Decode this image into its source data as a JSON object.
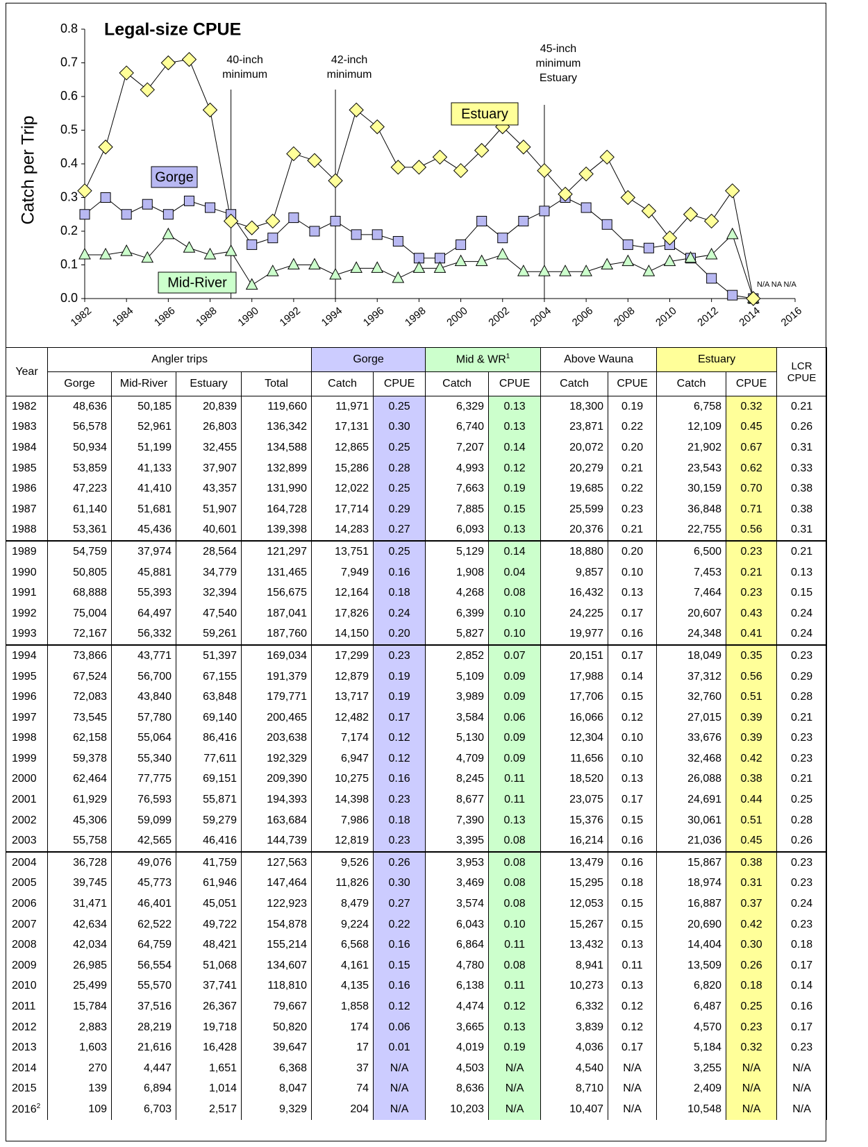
{
  "chart_data": {
    "type": "line",
    "title": "Legal-size CPUE",
    "y_label": "Catch per Trip",
    "x": [
      1982,
      1983,
      1984,
      1985,
      1986,
      1987,
      1988,
      1989,
      1990,
      1991,
      1992,
      1993,
      1994,
      1995,
      1996,
      1997,
      1998,
      1999,
      2000,
      2001,
      2002,
      2003,
      2004,
      2005,
      2006,
      2007,
      2008,
      2009,
      2010,
      2011,
      2012,
      2013,
      2014
    ],
    "xlim": [
      1982,
      2016
    ],
    "xticks": [
      1982,
      1984,
      1986,
      1988,
      1990,
      1992,
      1994,
      1996,
      1998,
      2000,
      2002,
      2004,
      2006,
      2008,
      2010,
      2012,
      2014,
      2016
    ],
    "ylim": [
      0,
      0.8
    ],
    "yticks": [
      {
        "value": 0,
        "label": "0.0"
      },
      0.1,
      0.2,
      0.3,
      0.4,
      0.5,
      0.6,
      0.7,
      0.8
    ],
    "series": [
      {
        "name": "Gorge",
        "color": "#b8b8f2",
        "marker": "square",
        "values": [
          0.25,
          0.3,
          0.25,
          0.28,
          0.25,
          0.29,
          0.27,
          0.25,
          0.16,
          0.18,
          0.24,
          0.2,
          0.23,
          0.19,
          0.19,
          0.17,
          0.12,
          0.12,
          0.16,
          0.23,
          0.18,
          0.23,
          0.26,
          0.3,
          0.27,
          0.22,
          0.16,
          0.15,
          0.16,
          0.12,
          0.06,
          0.01,
          0
        ]
      },
      {
        "name": "Mid-River",
        "color": "#ccffcc",
        "marker": "triangle",
        "values": [
          0.13,
          0.13,
          0.14,
          0.12,
          0.19,
          0.15,
          0.13,
          0.14,
          0.04,
          0.08,
          0.1,
          0.1,
          0.07,
          0.09,
          0.09,
          0.06,
          0.09,
          0.09,
          0.11,
          0.11,
          0.13,
          0.08,
          0.08,
          0.08,
          0.08,
          0.1,
          0.11,
          0.08,
          0.11,
          0.12,
          0.13,
          0.19,
          0
        ]
      },
      {
        "name": "Estuary",
        "color": "#ffff99",
        "marker": "diamond",
        "values": [
          0.32,
          0.45,
          0.67,
          0.62,
          0.7,
          0.71,
          0.56,
          0.23,
          0.21,
          0.23,
          0.43,
          0.41,
          0.35,
          0.56,
          0.51,
          0.39,
          0.39,
          0.42,
          0.38,
          0.44,
          0.51,
          0.45,
          0.38,
          0.31,
          0.37,
          0.42,
          0.3,
          0.26,
          0.18,
          0.25,
          0.23,
          0.32,
          0
        ]
      }
    ],
    "annotations": [
      {
        "x": 1989,
        "lines": [
          "40-inch",
          "minimum"
        ]
      },
      {
        "x": 1994,
        "lines": [
          "42-inch",
          "minimum"
        ]
      },
      {
        "x": 2004,
        "lines": [
          "45-inch",
          "minimum",
          "Estuary"
        ]
      }
    ],
    "na_note": "N/A NA N/A"
  },
  "table": {
    "columns_top": [
      "Year",
      "Angler trips",
      "Gorge",
      {
        "text": "Mid & WR",
        "note": "1"
      },
      "Above Wauna",
      "Estuary",
      "LCR CPUE"
    ],
    "columns": [
      "Gorge",
      "Mid-River",
      "Estuary",
      "Total",
      "Catch",
      "CPUE",
      "Catch",
      "CPUE",
      "Catch",
      "CPUE",
      "Catch",
      "CPUE"
    ],
    "groups": [
      [
        [
          "1982",
          "48,636",
          "50,185",
          "20,839",
          "119,660",
          "11,971",
          "0.25",
          "6,329",
          "0.13",
          "18,300",
          "0.19",
          "6,758",
          "0.32",
          "0.21"
        ],
        [
          "1983",
          "56,578",
          "52,961",
          "26,803",
          "136,342",
          "17,131",
          "0.30",
          "6,740",
          "0.13",
          "23,871",
          "0.22",
          "12,109",
          "0.45",
          "0.26"
        ],
        [
          "1984",
          "50,934",
          "51,199",
          "32,455",
          "134,588",
          "12,865",
          "0.25",
          "7,207",
          "0.14",
          "20,072",
          "0.20",
          "21,902",
          "0.67",
          "0.31"
        ],
        [
          "1985",
          "53,859",
          "41,133",
          "37,907",
          "132,899",
          "15,286",
          "0.28",
          "4,993",
          "0.12",
          "20,279",
          "0.21",
          "23,543",
          "0.62",
          "0.33"
        ],
        [
          "1986",
          "47,223",
          "41,410",
          "43,357",
          "131,990",
          "12,022",
          "0.25",
          "7,663",
          "0.19",
          "19,685",
          "0.22",
          "30,159",
          "0.70",
          "0.38"
        ],
        [
          "1987",
          "61,140",
          "51,681",
          "51,907",
          "164,728",
          "17,714",
          "0.29",
          "7,885",
          "0.15",
          "25,599",
          "0.23",
          "36,848",
          "0.71",
          "0.38"
        ],
        [
          "1988",
          "53,361",
          "45,436",
          "40,601",
          "139,398",
          "14,283",
          "0.27",
          "6,093",
          "0.13",
          "20,376",
          "0.21",
          "22,755",
          "0.56",
          "0.31"
        ]
      ],
      [
        [
          "1989",
          "54,759",
          "37,974",
          "28,564",
          "121,297",
          "13,751",
          "0.25",
          "5,129",
          "0.14",
          "18,880",
          "0.20",
          "6,500",
          "0.23",
          "0.21"
        ],
        [
          "1990",
          "50,805",
          "45,881",
          "34,779",
          "131,465",
          "7,949",
          "0.16",
          "1,908",
          "0.04",
          "9,857",
          "0.10",
          "7,453",
          "0.21",
          "0.13"
        ],
        [
          "1991",
          "68,888",
          "55,393",
          "32,394",
          "156,675",
          "12,164",
          "0.18",
          "4,268",
          "0.08",
          "16,432",
          "0.13",
          "7,464",
          "0.23",
          "0.15"
        ],
        [
          "1992",
          "75,004",
          "64,497",
          "47,540",
          "187,041",
          "17,826",
          "0.24",
          "6,399",
          "0.10",
          "24,225",
          "0.17",
          "20,607",
          "0.43",
          "0.24"
        ],
        [
          "1993",
          "72,167",
          "56,332",
          "59,261",
          "187,760",
          "14,150",
          "0.20",
          "5,827",
          "0.10",
          "19,977",
          "0.16",
          "24,348",
          "0.41",
          "0.24"
        ]
      ],
      [
        [
          "1994",
          "73,866",
          "43,771",
          "51,397",
          "169,034",
          "17,299",
          "0.23",
          "2,852",
          "0.07",
          "20,151",
          "0.17",
          "18,049",
          "0.35",
          "0.23"
        ],
        [
          "1995",
          "67,524",
          "56,700",
          "67,155",
          "191,379",
          "12,879",
          "0.19",
          "5,109",
          "0.09",
          "17,988",
          "0.14",
          "37,312",
          "0.56",
          "0.29"
        ],
        [
          "1996",
          "72,083",
          "43,840",
          "63,848",
          "179,771",
          "13,717",
          "0.19",
          "3,989",
          "0.09",
          "17,706",
          "0.15",
          "32,760",
          "0.51",
          "0.28"
        ],
        [
          "1997",
          "73,545",
          "57,780",
          "69,140",
          "200,465",
          "12,482",
          "0.17",
          "3,584",
          "0.06",
          "16,066",
          "0.12",
          "27,015",
          "0.39",
          "0.21"
        ],
        [
          "1998",
          "62,158",
          "55,064",
          "86,416",
          "203,638",
          "7,174",
          "0.12",
          "5,130",
          "0.09",
          "12,304",
          "0.10",
          "33,676",
          "0.39",
          "0.23"
        ],
        [
          "1999",
          "59,378",
          "55,340",
          "77,611",
          "192,329",
          "6,947",
          "0.12",
          "4,709",
          "0.09",
          "11,656",
          "0.10",
          "32,468",
          "0.42",
          "0.23"
        ],
        [
          "2000",
          "62,464",
          "77,775",
          "69,151",
          "209,390",
          "10,275",
          "0.16",
          "8,245",
          "0.11",
          "18,520",
          "0.13",
          "26,088",
          "0.38",
          "0.21"
        ],
        [
          "2001",
          "61,929",
          "76,593",
          "55,871",
          "194,393",
          "14,398",
          "0.23",
          "8,677",
          "0.11",
          "23,075",
          "0.17",
          "24,691",
          "0.44",
          "0.25"
        ],
        [
          "2002",
          "45,306",
          "59,099",
          "59,279",
          "163,684",
          "7,986",
          "0.18",
          "7,390",
          "0.13",
          "15,376",
          "0.15",
          "30,061",
          "0.51",
          "0.28"
        ],
        [
          "2003",
          "55,758",
          "42,565",
          "46,416",
          "144,739",
          "12,819",
          "0.23",
          "3,395",
          "0.08",
          "16,214",
          "0.16",
          "21,036",
          "0.45",
          "0.26"
        ]
      ],
      [
        [
          "2004",
          "36,728",
          "49,076",
          "41,759",
          "127,563",
          "9,526",
          "0.26",
          "3,953",
          "0.08",
          "13,479",
          "0.16",
          "15,867",
          "0.38",
          "0.23"
        ],
        [
          "2005",
          "39,745",
          "45,773",
          "61,946",
          "147,464",
          "11,826",
          "0.30",
          "3,469",
          "0.08",
          "15,295",
          "0.18",
          "18,974",
          "0.31",
          "0.23"
        ],
        [
          "2006",
          "31,471",
          "46,401",
          "45,051",
          "122,923",
          "8,479",
          "0.27",
          "3,574",
          "0.08",
          "12,053",
          "0.15",
          "16,887",
          "0.37",
          "0.24"
        ],
        [
          "2007",
          "42,634",
          "62,522",
          "49,722",
          "154,878",
          "9,224",
          "0.22",
          "6,043",
          "0.10",
          "15,267",
          "0.15",
          "20,690",
          "0.42",
          "0.23"
        ],
        [
          "2008",
          "42,034",
          "64,759",
          "48,421",
          "155,214",
          "6,568",
          "0.16",
          "6,864",
          "0.11",
          "13,432",
          "0.13",
          "14,404",
          "0.30",
          "0.18"
        ],
        [
          "2009",
          "26,985",
          "56,554",
          "51,068",
          "134,607",
          "4,161",
          "0.15",
          "4,780",
          "0.08",
          "8,941",
          "0.11",
          "13,509",
          "0.26",
          "0.17"
        ],
        [
          "2010",
          "25,499",
          "55,570",
          "37,741",
          "118,810",
          "4,135",
          "0.16",
          "6,138",
          "0.11",
          "10,273",
          "0.13",
          "6,820",
          "0.18",
          "0.14"
        ],
        [
          "2011",
          "15,784",
          "37,516",
          "26,367",
          "79,667",
          "1,858",
          "0.12",
          "4,474",
          "0.12",
          "6,332",
          "0.12",
          "6,487",
          "0.25",
          "0.16"
        ],
        [
          "2012",
          "2,883",
          "28,219",
          "19,718",
          "50,820",
          "174",
          "0.06",
          "3,665",
          "0.13",
          "3,839",
          "0.12",
          "4,570",
          "0.23",
          "0.17"
        ],
        [
          "2013",
          "1,603",
          "21,616",
          "16,428",
          "39,647",
          "17",
          "0.01",
          "4,019",
          "0.19",
          "4,036",
          "0.17",
          "5,184",
          "0.32",
          "0.23"
        ],
        [
          "2014",
          "270",
          "4,447",
          "1,651",
          "6,368",
          "37",
          "N/A",
          "4,503",
          "N/A",
          "4,540",
          "N/A",
          "3,255",
          "N/A",
          "N/A"
        ],
        [
          "2015",
          "139",
          "6,894",
          "1,014",
          "8,047",
          "74",
          "N/A",
          "8,636",
          "N/A",
          "8,710",
          "N/A",
          "2,409",
          "N/A",
          "N/A"
        ],
        [
          {
            "text": "2016",
            "note": "2"
          },
          "109",
          "6,703",
          "2,517",
          "9,329",
          "204",
          "N/A",
          "10,203",
          "N/A",
          "10,407",
          "N/A",
          "10,548",
          "N/A",
          "N/A"
        ]
      ]
    ]
  }
}
